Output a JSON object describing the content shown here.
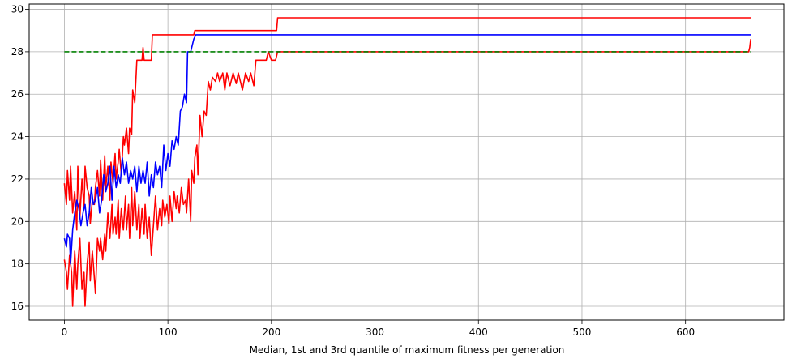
{
  "chart_data": {
    "type": "line",
    "title": "",
    "xlabel": "Median, 1st and 3rd quantile of maximum fitness per generation",
    "ylabel": "",
    "xlim": [
      -34,
      695
    ],
    "ylim": [
      15.35,
      30.25
    ],
    "x_ticks": [
      0,
      100,
      200,
      300,
      400,
      500,
      600
    ],
    "y_ticks": [
      16,
      18,
      20,
      22,
      24,
      26,
      28,
      30
    ],
    "grid": true,
    "colors": {
      "median": "#0000ff",
      "quantile": "#ff0000",
      "reference": "#008000",
      "grid": "#b0b0b0"
    },
    "series": [
      {
        "color": "#ff0000",
        "role": "upper-quantile",
        "points": [
          [
            0,
            21.8
          ],
          [
            2,
            20.8
          ],
          [
            3,
            22.4
          ],
          [
            5,
            21.0
          ],
          [
            6,
            22.6
          ],
          [
            8,
            20.4
          ],
          [
            10,
            21.4
          ],
          [
            12,
            19.6
          ],
          [
            13,
            22.6
          ],
          [
            15,
            20.2
          ],
          [
            17,
            22.0
          ],
          [
            19,
            20.6
          ],
          [
            20,
            22.6
          ],
          [
            22,
            21.6
          ],
          [
            24,
            21.2
          ],
          [
            25,
            19.9
          ],
          [
            27,
            21.0
          ],
          [
            29,
            20.8
          ],
          [
            30,
            21.6
          ],
          [
            32,
            22.4
          ],
          [
            34,
            21.2
          ],
          [
            35,
            22.9
          ],
          [
            37,
            21.0
          ],
          [
            39,
            23.1
          ],
          [
            40,
            21.6
          ],
          [
            42,
            22.6
          ],
          [
            44,
            21.0
          ],
          [
            45,
            22.8
          ],
          [
            47,
            21.8
          ],
          [
            49,
            23.2
          ],
          [
            50,
            22.0
          ],
          [
            52,
            22.8
          ],
          [
            53,
            23.4
          ],
          [
            55,
            22.2
          ],
          [
            57,
            24.0
          ],
          [
            58,
            23.6
          ],
          [
            60,
            24.4
          ],
          [
            62,
            23.2
          ],
          [
            63,
            24.4
          ],
          [
            65,
            24.1
          ],
          [
            66,
            26.2
          ],
          [
            68,
            25.6
          ],
          [
            70,
            27.6
          ],
          [
            72,
            27.6
          ],
          [
            75,
            27.6
          ],
          [
            76,
            28.2
          ],
          [
            77,
            27.6
          ],
          [
            84,
            27.6
          ],
          [
            85,
            28.8
          ],
          [
            100,
            28.8
          ],
          [
            125,
            28.8
          ],
          [
            126,
            29.0
          ],
          [
            150,
            29.0
          ],
          [
            200,
            29.0
          ],
          [
            205,
            29.0
          ],
          [
            206,
            29.6
          ],
          [
            400,
            29.6
          ],
          [
            663,
            29.6
          ]
        ]
      },
      {
        "color": "#ff0000",
        "role": "lower-quantile",
        "points": [
          [
            0,
            18.2
          ],
          [
            2,
            17.6
          ],
          [
            3,
            16.8
          ],
          [
            5,
            18.4
          ],
          [
            7,
            17.6
          ],
          [
            8,
            16.0
          ],
          [
            10,
            18.6
          ],
          [
            12,
            16.8
          ],
          [
            13,
            18.0
          ],
          [
            15,
            19.2
          ],
          [
            17,
            16.8
          ],
          [
            19,
            17.6
          ],
          [
            20,
            16.0
          ],
          [
            22,
            18.0
          ],
          [
            24,
            19.0
          ],
          [
            25,
            17.2
          ],
          [
            27,
            18.6
          ],
          [
            28,
            18.0
          ],
          [
            30,
            16.6
          ],
          [
            32,
            19.2
          ],
          [
            34,
            18.6
          ],
          [
            35,
            19.2
          ],
          [
            37,
            18.2
          ],
          [
            39,
            19.4
          ],
          [
            40,
            18.6
          ],
          [
            42,
            20.4
          ],
          [
            44,
            19.2
          ],
          [
            46,
            20.8
          ],
          [
            47,
            19.4
          ],
          [
            49,
            20.2
          ],
          [
            50,
            19.4
          ],
          [
            52,
            21.0
          ],
          [
            53,
            19.2
          ],
          [
            55,
            20.6
          ],
          [
            57,
            19.6
          ],
          [
            59,
            21.2
          ],
          [
            60,
            19.6
          ],
          [
            62,
            20.8
          ],
          [
            63,
            19.2
          ],
          [
            65,
            21.6
          ],
          [
            66,
            19.8
          ],
          [
            68,
            21.4
          ],
          [
            70,
            19.6
          ],
          [
            72,
            20.8
          ],
          [
            73,
            19.2
          ],
          [
            75,
            20.6
          ],
          [
            77,
            19.4
          ],
          [
            78,
            20.8
          ],
          [
            80,
            19.2
          ],
          [
            82,
            20.2
          ],
          [
            84,
            18.4
          ],
          [
            86,
            19.8
          ],
          [
            88,
            21.2
          ],
          [
            90,
            19.6
          ],
          [
            92,
            20.6
          ],
          [
            94,
            19.8
          ],
          [
            95,
            21.0
          ],
          [
            97,
            20.2
          ],
          [
            99,
            20.8
          ],
          [
            101,
            19.9
          ],
          [
            102,
            21.2
          ],
          [
            104,
            20.0
          ],
          [
            106,
            21.4
          ],
          [
            108,
            20.6
          ],
          [
            109,
            21.2
          ],
          [
            111,
            20.4
          ],
          [
            113,
            21.6
          ],
          [
            115,
            20.8
          ],
          [
            117,
            21.0
          ],
          [
            118,
            20.4
          ],
          [
            120,
            22.0
          ],
          [
            122,
            20.0
          ],
          [
            123,
            22.4
          ],
          [
            125,
            21.8
          ],
          [
            126,
            23.0
          ],
          [
            128,
            23.6
          ],
          [
            129,
            22.2
          ],
          [
            131,
            25.0
          ],
          [
            133,
            24.0
          ],
          [
            135,
            25.2
          ],
          [
            137,
            25.0
          ],
          [
            139,
            26.6
          ],
          [
            141,
            26.2
          ],
          [
            143,
            26.8
          ],
          [
            146,
            26.6
          ],
          [
            148,
            27.0
          ],
          [
            150,
            26.6
          ],
          [
            153,
            27.0
          ],
          [
            155,
            26.2
          ],
          [
            157,
            27.0
          ],
          [
            160,
            26.4
          ],
          [
            163,
            27.0
          ],
          [
            166,
            26.5
          ],
          [
            168,
            27.0
          ],
          [
            172,
            26.2
          ],
          [
            175,
            27.0
          ],
          [
            178,
            26.6
          ],
          [
            180,
            27.0
          ],
          [
            183,
            26.4
          ],
          [
            185,
            27.6
          ],
          [
            195,
            27.6
          ],
          [
            197,
            28.0
          ],
          [
            200,
            27.6
          ],
          [
            204,
            27.6
          ],
          [
            206,
            28.0
          ],
          [
            400,
            28.0
          ],
          [
            661,
            28.0
          ],
          [
            662,
            28.2
          ],
          [
            663,
            28.6
          ]
        ]
      },
      {
        "color": "#0000ff",
        "role": "median",
        "points": [
          [
            0,
            19.2
          ],
          [
            2,
            18.8
          ],
          [
            3,
            19.4
          ],
          [
            5,
            19.2
          ],
          [
            6,
            18.0
          ],
          [
            8,
            19.6
          ],
          [
            10,
            20.4
          ],
          [
            12,
            21.0
          ],
          [
            14,
            20.6
          ],
          [
            16,
            19.8
          ],
          [
            18,
            20.4
          ],
          [
            20,
            20.8
          ],
          [
            22,
            19.8
          ],
          [
            24,
            20.4
          ],
          [
            26,
            21.6
          ],
          [
            28,
            20.8
          ],
          [
            30,
            21.0
          ],
          [
            32,
            21.6
          ],
          [
            34,
            20.4
          ],
          [
            36,
            21.0
          ],
          [
            38,
            22.2
          ],
          [
            40,
            21.4
          ],
          [
            42,
            21.8
          ],
          [
            44,
            22.6
          ],
          [
            46,
            21.0
          ],
          [
            48,
            22.6
          ],
          [
            50,
            21.6
          ],
          [
            52,
            22.2
          ],
          [
            54,
            21.8
          ],
          [
            56,
            23.0
          ],
          [
            58,
            22.2
          ],
          [
            60,
            22.8
          ],
          [
            62,
            21.8
          ],
          [
            64,
            22.4
          ],
          [
            66,
            22.0
          ],
          [
            68,
            22.6
          ],
          [
            70,
            21.4
          ],
          [
            72,
            22.6
          ],
          [
            74,
            21.8
          ],
          [
            76,
            22.4
          ],
          [
            78,
            21.8
          ],
          [
            80,
            22.8
          ],
          [
            82,
            21.2
          ],
          [
            84,
            22.2
          ],
          [
            86,
            21.6
          ],
          [
            88,
            22.8
          ],
          [
            90,
            22.2
          ],
          [
            92,
            22.6
          ],
          [
            94,
            21.6
          ],
          [
            96,
            23.6
          ],
          [
            98,
            22.4
          ],
          [
            100,
            23.2
          ],
          [
            102,
            22.6
          ],
          [
            104,
            23.8
          ],
          [
            106,
            23.4
          ],
          [
            108,
            24.0
          ],
          [
            110,
            23.6
          ],
          [
            112,
            25.2
          ],
          [
            114,
            25.4
          ],
          [
            116,
            26.0
          ],
          [
            118,
            25.6
          ],
          [
            119,
            28.0
          ],
          [
            122,
            28.0
          ],
          [
            123,
            28.2
          ],
          [
            124,
            28.4
          ],
          [
            125,
            28.6
          ],
          [
            127,
            28.8
          ],
          [
            300,
            28.8
          ],
          [
            663,
            28.8
          ]
        ]
      },
      {
        "color": "#008000",
        "role": "reference",
        "dashed": true,
        "points": [
          [
            0,
            28.0
          ],
          [
            663,
            28.0
          ]
        ]
      }
    ]
  }
}
